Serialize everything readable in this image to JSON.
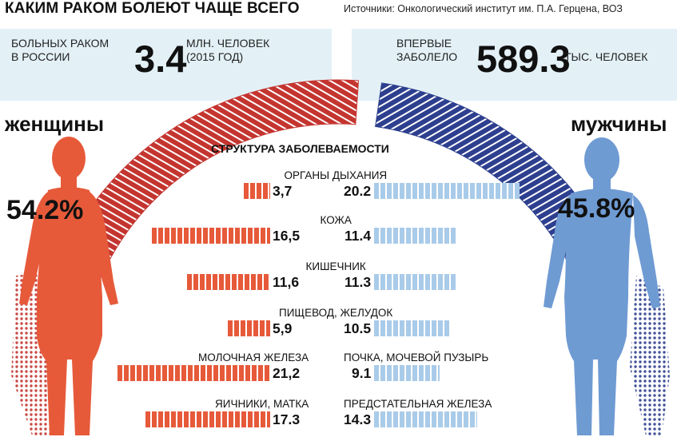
{
  "header": {
    "title": "КАКИМ РАКОМ БОЛЕЮТ ЧАЩЕ ВСЕГО",
    "source": "Источники: Онкологический институт им. П.А. Герцена, ВОЗ"
  },
  "stats": {
    "left": {
      "label_line1": "БОЛЬНЫХ РАКОМ",
      "label_line2": "В РОССИИ",
      "value": "3.4",
      "unit_line1": "МЛН. ЧЕЛОВЕК",
      "unit_line2": "(2015 ГОД)"
    },
    "right": {
      "label_line1": "ВПЕРВЫЕ",
      "label_line2": "ЗАБОЛЕЛО",
      "value": "589.3",
      "unit": "ТЫС. ЧЕЛОВЕК"
    }
  },
  "genders": {
    "women": {
      "label": "женщины",
      "share": "54.2%"
    },
    "men": {
      "label": "мужчины",
      "share": "45.8%"
    }
  },
  "colors": {
    "women": "#e65a3a",
    "women_dark": "#c43530",
    "men": "#6f9bd3",
    "men_dark": "#2d3f8e",
    "men_bar": "#a9cbe9",
    "panel": "#e3f1f7"
  },
  "chart_data": {
    "type": "bar",
    "title": "СТРУКТУРА ЗАБОЛЕВАЕМОСТИ",
    "series": [
      {
        "name": "женщины",
        "share": 54.2
      },
      {
        "name": "мужчины",
        "share": 45.8
      }
    ],
    "rows": [
      {
        "shared_label": "ОРГАНЫ ДЫХАНИЯ",
        "women": 3.7,
        "men": 20.2,
        "women_text": "3,7",
        "men_text": "20.2"
      },
      {
        "shared_label": "КОЖА",
        "women": 16.5,
        "men": 11.4,
        "women_text": "16,5",
        "men_text": "11.4"
      },
      {
        "shared_label": "КИШЕЧНИК",
        "women": 11.6,
        "men": 11.3,
        "women_text": "11,6",
        "men_text": "11.3"
      },
      {
        "shared_label": "ПИЩЕВОД, ЖЕЛУДОК",
        "women": 5.9,
        "men": 10.5,
        "women_text": "5,9",
        "men_text": "10.5"
      },
      {
        "women_label": "МОЛОЧНАЯ ЖЕЛЕЗА",
        "men_label": "ПОЧКА, МОЧЕВОЙ ПУЗЫРЬ",
        "women": 21.2,
        "men": 9.1,
        "women_text": "21,2",
        "men_text": "9.1"
      },
      {
        "women_label": "ЯИЧНИКИ, МАТКА",
        "men_label": "ПРЕДСТАТЕЛЬНАЯ ЖЕЛЕЗА",
        "women": 17.3,
        "men": 14.3,
        "women_text": "17.3",
        "men_text": "14.3"
      }
    ]
  }
}
